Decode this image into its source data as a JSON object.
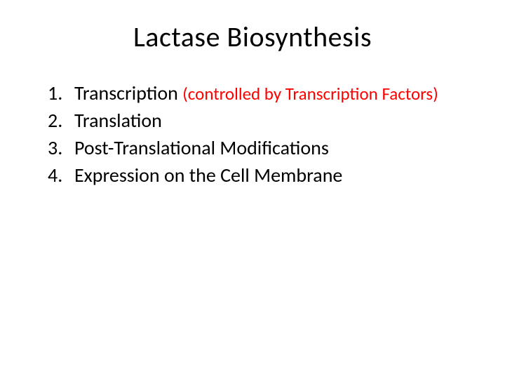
{
  "title": "Lactase Biosynthesis",
  "items": [
    {
      "number": "1.",
      "text": "Transcription ",
      "note": "(controlled by Transcription Factors)"
    },
    {
      "number": "2.",
      "text": "Translation",
      "note": ""
    },
    {
      "number": "3.",
      "text": "Post-Translational Modifications",
      "note": ""
    },
    {
      "number": "4.",
      "text": "Expression on the Cell Membrane",
      "note": ""
    }
  ],
  "colors": {
    "background": "#ffffff",
    "text": "#000000",
    "highlight": "#ff0000"
  },
  "typography": {
    "title_fontsize": 40,
    "body_fontsize": 28,
    "note_fontsize": 25,
    "font_family": "Calibri"
  }
}
